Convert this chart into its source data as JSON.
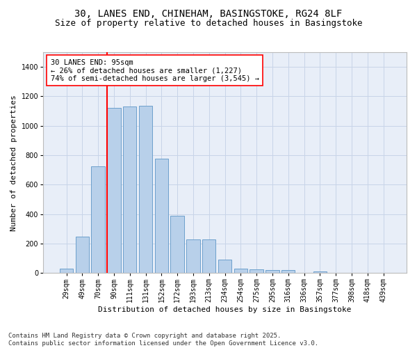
{
  "title_line1": "30, LANES END, CHINEHAM, BASINGSTOKE, RG24 8LF",
  "title_line2": "Size of property relative to detached houses in Basingstoke",
  "xlabel": "Distribution of detached houses by size in Basingstoke",
  "ylabel": "Number of detached properties",
  "categories": [
    "29sqm",
    "49sqm",
    "70sqm",
    "90sqm",
    "111sqm",
    "131sqm",
    "152sqm",
    "172sqm",
    "193sqm",
    "213sqm",
    "234sqm",
    "254sqm",
    "275sqm",
    "295sqm",
    "316sqm",
    "336sqm",
    "357sqm",
    "377sqm",
    "398sqm",
    "418sqm",
    "439sqm"
  ],
  "values": [
    30,
    245,
    725,
    1120,
    1130,
    1135,
    775,
    390,
    230,
    230,
    90,
    30,
    25,
    22,
    18,
    0,
    10,
    0,
    0,
    0,
    0
  ],
  "bar_color": "#b8d0ea",
  "bar_edge_color": "#6ca0cc",
  "vline_index": 3,
  "vline_color": "red",
  "annotation_text": "30 LANES END: 95sqm\n← 26% of detached houses are smaller (1,227)\n74% of semi-detached houses are larger (3,545) →",
  "annotation_box_color": "white",
  "annotation_box_edge_color": "red",
  "ylim": [
    0,
    1500
  ],
  "yticks": [
    0,
    200,
    400,
    600,
    800,
    1000,
    1200,
    1400
  ],
  "grid_color": "#c8d4e8",
  "background_color": "#e8eef8",
  "footnote": "Contains HM Land Registry data © Crown copyright and database right 2025.\nContains public sector information licensed under the Open Government Licence v3.0.",
  "title_fontsize": 10,
  "subtitle_fontsize": 9,
  "xlabel_fontsize": 8,
  "ylabel_fontsize": 8,
  "tick_fontsize": 7,
  "annotation_fontsize": 7.5,
  "footnote_fontsize": 6.5
}
